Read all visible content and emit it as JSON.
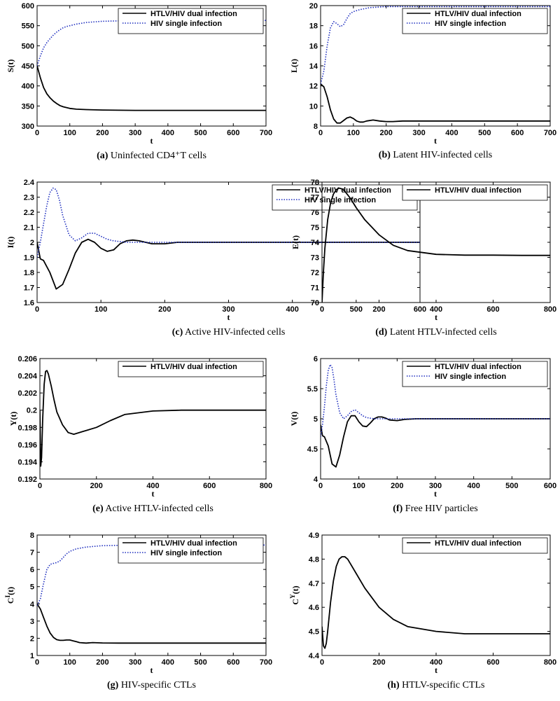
{
  "chart_data": [
    {
      "type": "line",
      "panel": "(a)",
      "caption": "Uninfected CD4⁺T cells",
      "ylabel": "S(t)",
      "xlabel": "t",
      "xlim": [
        0,
        700
      ],
      "ylim": [
        300,
        600
      ],
      "xticks": [
        0,
        100,
        200,
        300,
        400,
        500,
        600,
        700
      ],
      "yticks": [
        300,
        350,
        400,
        450,
        500,
        550,
        600
      ],
      "ytick_labels": [
        "300",
        "350",
        "400",
        "450",
        "500",
        "550",
        "600"
      ],
      "legend": "top-right",
      "series": [
        {
          "name": "HTLV/HIV dual infection",
          "style": "solid",
          "color": "#000000",
          "x": [
            0,
            10,
            20,
            30,
            40,
            50,
            60,
            70,
            80,
            90,
            100,
            120,
            150,
            200,
            300,
            400,
            500,
            600,
            700
          ],
          "y": [
            450,
            420,
            396,
            380,
            370,
            362,
            356,
            351,
            348,
            346,
            344,
            342,
            341,
            340,
            339,
            339,
            339,
            339,
            339
          ]
        },
        {
          "name": "HIV single infection",
          "style": "dotted",
          "color": "#1f2fbf",
          "x": [
            0,
            10,
            20,
            30,
            40,
            50,
            60,
            70,
            80,
            90,
            100,
            120,
            150,
            200,
            250,
            300,
            400,
            500,
            600,
            700
          ],
          "y": [
            450,
            475,
            495,
            508,
            518,
            527,
            534,
            540,
            545,
            548,
            550,
            554,
            558,
            561,
            562,
            563,
            563,
            563,
            563,
            563
          ]
        }
      ]
    },
    {
      "type": "line",
      "panel": "(b)",
      "caption": "Latent HIV-infected cells",
      "ylabel": "L(t)",
      "xlabel": "t",
      "xlim": [
        0,
        700
      ],
      "ylim": [
        8,
        20
      ],
      "xticks": [
        0,
        100,
        200,
        300,
        400,
        500,
        600,
        700
      ],
      "yticks": [
        8,
        10,
        12,
        14,
        16,
        18,
        20
      ],
      "ytick_labels": [
        "8",
        "10",
        "12",
        "14",
        "16",
        "18",
        "20"
      ],
      "legend": "top-right",
      "series": [
        {
          "name": "HTLV/HIV dual infection",
          "style": "solid",
          "color": "#000000",
          "x": [
            0,
            10,
            20,
            30,
            40,
            50,
            60,
            70,
            80,
            90,
            100,
            110,
            120,
            130,
            140,
            160,
            180,
            200,
            220,
            250,
            300,
            400,
            500,
            600,
            700
          ],
          "y": [
            12.2,
            11.9,
            10.9,
            9.6,
            8.7,
            8.3,
            8.3,
            8.55,
            8.8,
            8.9,
            8.75,
            8.5,
            8.4,
            8.4,
            8.5,
            8.6,
            8.5,
            8.45,
            8.45,
            8.5,
            8.5,
            8.5,
            8.5,
            8.5,
            8.5
          ]
        },
        {
          "name": "HIV single infection",
          "style": "dotted",
          "color": "#1f2fbf",
          "x": [
            0,
            10,
            20,
            30,
            40,
            50,
            60,
            70,
            80,
            90,
            100,
            120,
            150,
            200,
            250,
            300,
            400,
            500,
            600,
            700
          ],
          "y": [
            12.2,
            13.5,
            16.0,
            17.8,
            18.4,
            18.2,
            17.9,
            18.1,
            18.7,
            19.2,
            19.4,
            19.6,
            19.8,
            19.9,
            19.9,
            19.9,
            19.9,
            19.9,
            19.9,
            19.9
          ]
        }
      ]
    },
    {
      "type": "line",
      "panel": "(c)",
      "caption": "Active HIV-infected cells",
      "ylabel": "I(t)",
      "xlabel": "t",
      "xlim": [
        0,
        600
      ],
      "ylim": [
        1.6,
        2.4
      ],
      "xticks": [
        0,
        100,
        200,
        300,
        400,
        500,
        600
      ],
      "yticks": [
        1.6,
        1.7,
        1.8,
        1.9,
        2.0,
        2.1,
        2.2,
        2.3,
        2.4
      ],
      "ytick_labels": [
        "1.6",
        "1.7",
        "1.8",
        "1.9",
        "2",
        "2.1",
        "2.2",
        "2.3",
        "2.4"
      ],
      "legend": "top-right",
      "series": [
        {
          "name": "HTLV/HIV dual infection",
          "style": "solid",
          "color": "#000000",
          "x": [
            0,
            5,
            10,
            20,
            30,
            40,
            50,
            60,
            70,
            80,
            90,
            100,
            110,
            120,
            130,
            140,
            150,
            160,
            170,
            180,
            200,
            220,
            250,
            300,
            400,
            500,
            600
          ],
          "y": [
            2.0,
            1.89,
            1.88,
            1.8,
            1.69,
            1.72,
            1.82,
            1.93,
            2.0,
            2.02,
            2.0,
            1.96,
            1.94,
            1.95,
            1.99,
            2.01,
            2.015,
            2.01,
            2.0,
            1.99,
            1.99,
            2.0,
            2.0,
            2.0,
            2.0,
            2.0,
            2.0
          ]
        },
        {
          "name": "HIV single infection",
          "style": "dotted",
          "color": "#1f2fbf",
          "x": [
            0,
            5,
            10,
            15,
            20,
            25,
            30,
            35,
            40,
            50,
            60,
            70,
            80,
            90,
            100,
            110,
            120,
            140,
            160,
            200,
            300,
            400,
            500,
            600
          ],
          "y": [
            1.9,
            2.0,
            2.12,
            2.24,
            2.33,
            2.36,
            2.35,
            2.28,
            2.18,
            2.05,
            2.01,
            2.03,
            2.06,
            2.06,
            2.04,
            2.02,
            2.01,
            2.0,
            2.0,
            2.0,
            2.0,
            2.0,
            2.0,
            2.0
          ]
        }
      ]
    },
    {
      "type": "line",
      "panel": "(d)",
      "caption": "Latent HTLV-infected cells",
      "ylabel": "E(t)",
      "xlabel": "t",
      "xlim": [
        0,
        800
      ],
      "ylim": [
        70,
        78
      ],
      "xticks": [
        0,
        200,
        400,
        600,
        800
      ],
      "yticks": [
        70,
        71,
        72,
        73,
        74,
        75,
        76,
        77,
        78
      ],
      "ytick_labels": [
        "70",
        "71",
        "72",
        "73",
        "74",
        "75",
        "76",
        "77",
        "78"
      ],
      "legend": "top-right",
      "series": [
        {
          "name": "HTLV/HIV dual infection",
          "style": "solid",
          "color": "#000000",
          "x": [
            0,
            5,
            10,
            20,
            30,
            40,
            50,
            60,
            70,
            80,
            100,
            120,
            150,
            200,
            250,
            300,
            400,
            500,
            600,
            700,
            800
          ],
          "y": [
            70,
            72.0,
            73.6,
            75.5,
            76.6,
            77.2,
            77.5,
            77.6,
            77.55,
            77.4,
            76.9,
            76.3,
            75.5,
            74.5,
            73.8,
            73.45,
            73.2,
            73.15,
            73.15,
            73.13,
            73.13
          ]
        }
      ]
    },
    {
      "type": "line",
      "panel": "(e)",
      "caption": "Active HTLV-infected cells",
      "ylabel": "Y(t)",
      "xlabel": "t",
      "xlim": [
        0,
        800
      ],
      "ylim": [
        0.192,
        0.206
      ],
      "xticks": [
        0,
        200,
        400,
        600,
        800
      ],
      "yticks": [
        0.192,
        0.194,
        0.196,
        0.198,
        0.2,
        0.202,
        0.204,
        0.206
      ],
      "ytick_labels": [
        "0.192",
        "0.194",
        "0.196",
        "0.198",
        "0.2",
        "0.202",
        "0.204",
        "0.206"
      ],
      "legend": "top-right",
      "series": [
        {
          "name": "HTLV/HIV dual infection",
          "style": "solid",
          "color": "#000000",
          "x": [
            0,
            3,
            6,
            10,
            15,
            20,
            25,
            30,
            40,
            50,
            60,
            80,
            100,
            120,
            150,
            200,
            250,
            300,
            400,
            500,
            600,
            700,
            800
          ],
          "y": [
            0.2,
            0.1935,
            0.1945,
            0.199,
            0.203,
            0.2045,
            0.2046,
            0.2042,
            0.2028,
            0.2012,
            0.1998,
            0.1983,
            0.1974,
            0.1972,
            0.1975,
            0.198,
            0.1988,
            0.1995,
            0.1999,
            0.2,
            0.2,
            0.2,
            0.2
          ]
        }
      ]
    },
    {
      "type": "line",
      "panel": "(f)",
      "caption": "Free HIV particles",
      "ylabel": "V(t)",
      "xlabel": "t",
      "xlim": [
        0,
        600
      ],
      "ylim": [
        4,
        6
      ],
      "xticks": [
        0,
        100,
        200,
        300,
        400,
        500,
        600
      ],
      "yticks": [
        4,
        4.5,
        5,
        5.5,
        6
      ],
      "ytick_labels": [
        "4",
        "4.5",
        "5",
        "5.5",
        "6"
      ],
      "legend": "top-right",
      "series": [
        {
          "name": "HTLV/HIV dual infection",
          "style": "solid",
          "color": "#000000",
          "x": [
            0,
            5,
            10,
            20,
            30,
            40,
            50,
            60,
            70,
            80,
            90,
            100,
            110,
            120,
            130,
            140,
            150,
            160,
            170,
            180,
            200,
            220,
            250,
            300,
            400,
            500,
            600
          ],
          "y": [
            4.9,
            4.72,
            4.7,
            4.55,
            4.25,
            4.2,
            4.4,
            4.7,
            4.95,
            5.05,
            5.05,
            4.95,
            4.88,
            4.87,
            4.93,
            5.0,
            5.03,
            5.03,
            5.01,
            4.98,
            4.97,
            4.99,
            5.0,
            5.0,
            5.0,
            5.0,
            5.0
          ]
        },
        {
          "name": "HIV single infection",
          "style": "dotted",
          "color": "#1f2fbf",
          "x": [
            0,
            5,
            10,
            15,
            20,
            25,
            30,
            35,
            40,
            50,
            60,
            70,
            80,
            90,
            100,
            110,
            120,
            140,
            160,
            200,
            300,
            400,
            500,
            600
          ],
          "y": [
            4.7,
            4.9,
            5.2,
            5.55,
            5.8,
            5.9,
            5.85,
            5.65,
            5.4,
            5.1,
            5.0,
            5.05,
            5.12,
            5.15,
            5.1,
            5.05,
            5.02,
            5.0,
            5.0,
            5.0,
            5.0,
            5.0,
            5.0,
            5.0
          ]
        }
      ]
    },
    {
      "type": "line",
      "panel": "(g)",
      "caption": "HIV-specific CTLs",
      "ylabel": "C^I(t)",
      "xlabel": "t",
      "xlim": [
        0,
        700
      ],
      "ylim": [
        1,
        8
      ],
      "xticks": [
        0,
        100,
        200,
        300,
        400,
        500,
        600,
        700
      ],
      "yticks": [
        1,
        2,
        3,
        4,
        5,
        6,
        7,
        8
      ],
      "ytick_labels": [
        "1",
        "2",
        "3",
        "4",
        "5",
        "6",
        "7",
        "8"
      ],
      "legend": "top-right",
      "series": [
        {
          "name": "HTLV/HIV dual infection",
          "style": "solid",
          "color": "#000000",
          "x": [
            0,
            10,
            20,
            30,
            40,
            50,
            60,
            70,
            80,
            90,
            100,
            110,
            120,
            130,
            150,
            170,
            200,
            250,
            300,
            400,
            500,
            600,
            700
          ],
          "y": [
            4.0,
            3.7,
            3.2,
            2.7,
            2.3,
            2.05,
            1.92,
            1.88,
            1.88,
            1.9,
            1.9,
            1.85,
            1.8,
            1.75,
            1.72,
            1.75,
            1.73,
            1.72,
            1.72,
            1.72,
            1.72,
            1.72,
            1.72
          ]
        },
        {
          "name": "HIV single infection",
          "style": "dotted",
          "color": "#1f2fbf",
          "x": [
            0,
            10,
            20,
            30,
            40,
            50,
            60,
            70,
            80,
            90,
            100,
            120,
            150,
            200,
            250,
            300,
            400,
            500,
            600,
            700
          ],
          "y": [
            3.9,
            4.3,
            5.2,
            6.0,
            6.3,
            6.35,
            6.4,
            6.5,
            6.7,
            6.9,
            7.05,
            7.2,
            7.3,
            7.38,
            7.4,
            7.42,
            7.42,
            7.42,
            7.42,
            7.42
          ]
        }
      ]
    },
    {
      "type": "line",
      "panel": "(h)",
      "caption": "HTLV-specific CTLs",
      "ylabel": "C^Y(t)",
      "xlabel": "t",
      "xlim": [
        0,
        800
      ],
      "ylim": [
        4.4,
        4.9
      ],
      "xticks": [
        0,
        200,
        400,
        600,
        800
      ],
      "yticks": [
        4.4,
        4.5,
        4.6,
        4.7,
        4.8,
        4.9
      ],
      "ytick_labels": [
        "4.4",
        "4.5",
        "4.6",
        "4.7",
        "4.8",
        "4.9"
      ],
      "legend": "top-right",
      "series": [
        {
          "name": "HTLV/HIV dual infection",
          "style": "solid",
          "color": "#000000",
          "x": [
            0,
            5,
            10,
            15,
            20,
            30,
            40,
            50,
            60,
            70,
            80,
            90,
            100,
            120,
            150,
            200,
            250,
            300,
            400,
            500,
            600,
            700,
            800
          ],
          "y": [
            4.52,
            4.44,
            4.43,
            4.45,
            4.5,
            4.62,
            4.71,
            4.77,
            4.8,
            4.81,
            4.81,
            4.8,
            4.78,
            4.74,
            4.68,
            4.6,
            4.55,
            4.52,
            4.5,
            4.49,
            4.49,
            4.49,
            4.49
          ]
        }
      ]
    }
  ]
}
